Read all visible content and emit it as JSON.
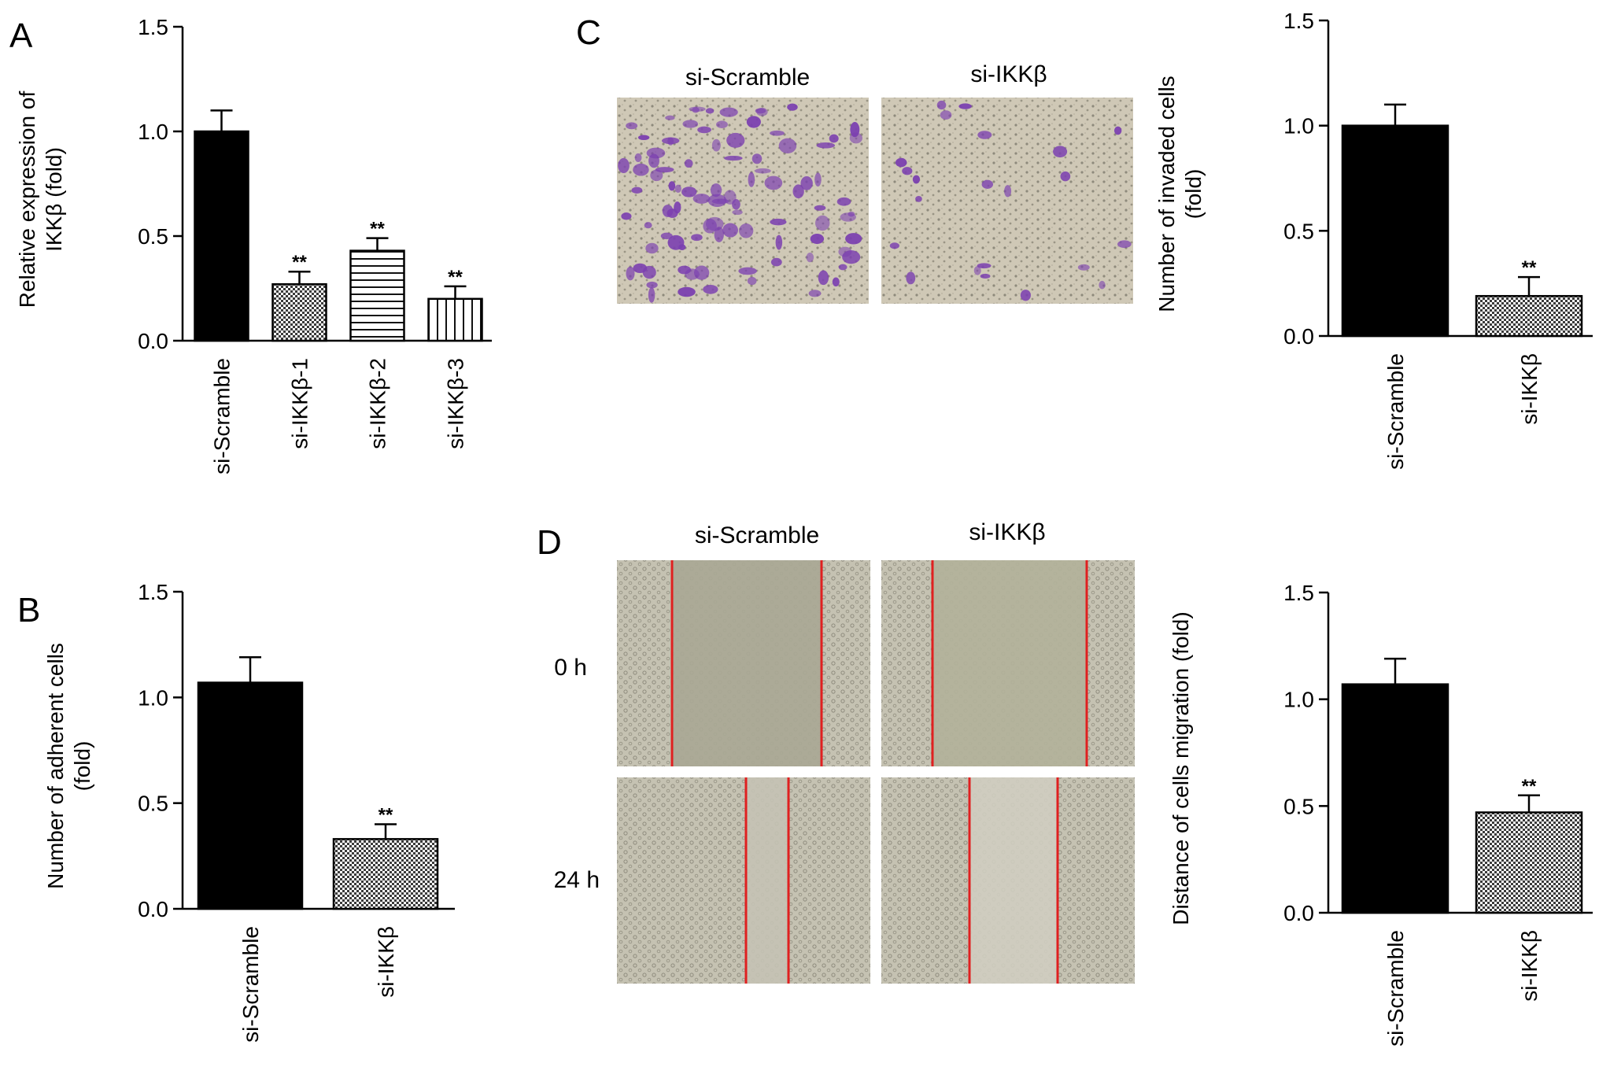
{
  "panels": {
    "A": "A",
    "B": "B",
    "C": "C",
    "D": "D"
  },
  "micrographs": {
    "C": {
      "columns": [
        "si-Scramble",
        "si-IKKβ"
      ]
    },
    "D": {
      "columns": [
        "si-Scramble",
        "si-IKKβ"
      ],
      "rows": [
        "0 h",
        "24 h"
      ]
    }
  },
  "colors": {
    "purple_stain": "#7b3fb0",
    "field_C": "#c9c2b0",
    "field_D": "#b9b7a6",
    "scratch_line": "#e02020",
    "bar_fill": "#000000"
  },
  "chart_data": [
    {
      "panel": "A",
      "type": "bar",
      "categories": [
        "si-Scramble",
        "si-IKKβ-1",
        "si-IKKβ-2",
        "si-IKKβ-3"
      ],
      "values": [
        1.0,
        0.27,
        0.43,
        0.2
      ],
      "errors": [
        0.1,
        0.06,
        0.06,
        0.06
      ],
      "significance": [
        "",
        "**",
        "**",
        "**"
      ],
      "fills": [
        "solid",
        "checker",
        "hlines",
        "vlines"
      ],
      "ylabel_lines": [
        "Relative expression of",
        "IKKβ (fold)"
      ],
      "ylim": [
        0,
        1.5
      ],
      "yticks": [
        "0.0",
        "0.5",
        "1.0",
        "1.5"
      ]
    },
    {
      "panel": "B",
      "type": "bar",
      "categories": [
        "si-Scramble",
        "si-IKKβ"
      ],
      "values": [
        1.07,
        0.33
      ],
      "errors": [
        0.12,
        0.07
      ],
      "significance": [
        "",
        "**"
      ],
      "fills": [
        "solid",
        "checker"
      ],
      "ylabel_lines": [
        "Number of adherent cells",
        "(fold)"
      ],
      "ylim": [
        0,
        1.5
      ],
      "yticks": [
        "0.0",
        "0.5",
        "1.0",
        "1.5"
      ]
    },
    {
      "panel": "C",
      "type": "bar",
      "categories": [
        "si-Scramble",
        "si-IKKβ"
      ],
      "values": [
        1.0,
        0.19
      ],
      "errors": [
        0.1,
        0.09
      ],
      "significance": [
        "",
        "**"
      ],
      "fills": [
        "solid",
        "checker"
      ],
      "ylabel_lines": [
        "Number of invaded cells",
        "(fold)"
      ],
      "ylim": [
        0,
        1.5
      ],
      "yticks": [
        "0.0",
        "0.5",
        "1.0",
        "1.5"
      ]
    },
    {
      "panel": "D",
      "type": "bar",
      "categories": [
        "si-Scramble",
        "si-IKKβ"
      ],
      "values": [
        1.07,
        0.47
      ],
      "errors": [
        0.12,
        0.08
      ],
      "significance": [
        "",
        "**"
      ],
      "fills": [
        "solid",
        "checker"
      ],
      "ylabel_lines": [
        "Distance of cells migration (fold)"
      ],
      "ylim": [
        0,
        1.5
      ],
      "yticks": [
        "0.0",
        "0.5",
        "1.0",
        "1.5"
      ]
    }
  ]
}
